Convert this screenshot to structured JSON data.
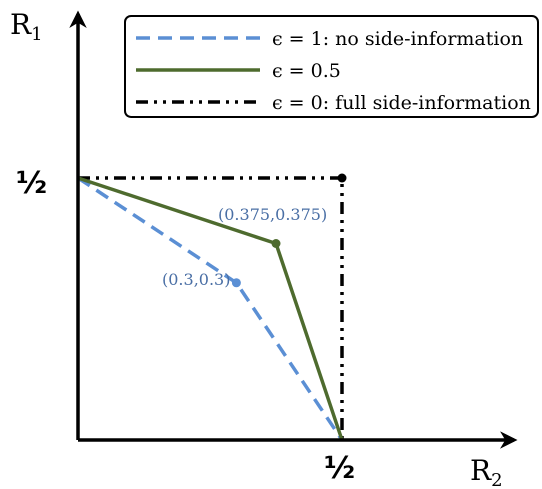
{
  "chart_data": {
    "type": "line",
    "xlabel": "R",
    "xlabel_sub": "2",
    "ylabel": "R",
    "ylabel_sub": "1",
    "x_tick_label": "½",
    "y_tick_label": "½",
    "xlim": [
      0,
      0.5
    ],
    "ylim": [
      0,
      0.5
    ],
    "grid": false,
    "legend_position": "top-right",
    "series": [
      {
        "name": "ϵ = 1: no side-information",
        "color": "#5b8fd4",
        "dash": "dashed",
        "x": [
          0,
          0.3,
          0.5
        ],
        "y": [
          0.5,
          0.3,
          0
        ]
      },
      {
        "name": "ϵ = 0.5",
        "color": "#4e6b2e",
        "dash": "solid",
        "x": [
          0,
          0.375,
          0.5
        ],
        "y": [
          0.5,
          0.375,
          0
        ]
      },
      {
        "name": "ϵ = 0: full side-information",
        "color": "#000000",
        "dash": "dashdotdot",
        "x": [
          0,
          0.5,
          0.5
        ],
        "y": [
          0.5,
          0.5,
          0
        ]
      }
    ],
    "annotations": [
      {
        "text": "(0.375,0.375)",
        "x": 0.375,
        "y": 0.375,
        "color": "#4a6fa5"
      },
      {
        "text": "(0.3,0.3)",
        "x": 0.3,
        "y": 0.3,
        "color": "#4a6fa5"
      }
    ]
  }
}
